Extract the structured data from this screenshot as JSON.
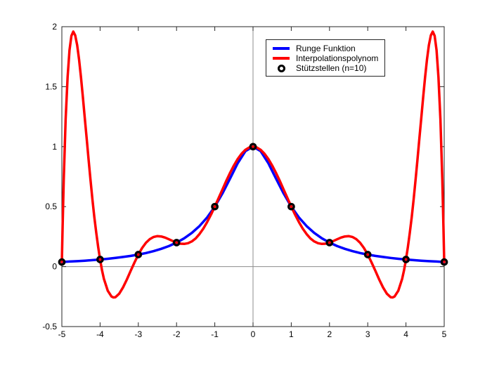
{
  "figure": {
    "background_color": "#ffffff",
    "axis_color": "#262626",
    "zero_line_color": "#8c8c8c",
    "text_color": "#000000"
  },
  "legend": {
    "items": [
      {
        "label": "Runge Funktion",
        "swatch": "line",
        "color": "#0000ff"
      },
      {
        "label": "Interpolationspolynom",
        "swatch": "line",
        "color": "#ff0000"
      },
      {
        "label": "Stützstellen (n=10)",
        "swatch": "marker",
        "color": "#000000"
      }
    ]
  },
  "chart_data": {
    "type": "line",
    "title": "",
    "xlabel": "",
    "ylabel": "",
    "xlim": [
      -5,
      5
    ],
    "ylim": [
      -0.5,
      2
    ],
    "x_ticks": [
      -5,
      -4,
      -3,
      -2,
      -1,
      0,
      1,
      2,
      3,
      4,
      5
    ],
    "x_tick_labels": [
      "-5",
      "-4",
      "-3",
      "-2",
      "-1",
      "0",
      "1",
      "2",
      "3",
      "4",
      "5"
    ],
    "y_ticks": [
      -0.5,
      0,
      0.5,
      1,
      1.5,
      2
    ],
    "y_tick_labels": [
      "-0.5",
      "0",
      "0.5",
      "1",
      "1.5",
      "2"
    ],
    "grid": false,
    "zero_lines": true,
    "box": true,
    "legend_position": "top-right-inside",
    "series": [
      {
        "name": "Runge Funktion",
        "type": "line",
        "color": "#0000ff",
        "line_width": 3.5,
        "points": [
          [
            -5,
            0.038
          ],
          [
            -4.8,
            0.042
          ],
          [
            -4.6,
            0.045
          ],
          [
            -4.4,
            0.049
          ],
          [
            -4.2,
            0.054
          ],
          [
            -4,
            0.059
          ],
          [
            -3.8,
            0.065
          ],
          [
            -3.6,
            0.072
          ],
          [
            -3.4,
            0.08
          ],
          [
            -3.2,
            0.089
          ],
          [
            -3,
            0.1
          ],
          [
            -2.8,
            0.113
          ],
          [
            -2.6,
            0.129
          ],
          [
            -2.4,
            0.148
          ],
          [
            -2.2,
            0.171
          ],
          [
            -2,
            0.2
          ],
          [
            -1.8,
            0.236
          ],
          [
            -1.6,
            0.281
          ],
          [
            -1.4,
            0.338
          ],
          [
            -1.2,
            0.41
          ],
          [
            -1,
            0.5
          ],
          [
            -0.8,
            0.61
          ],
          [
            -0.6,
            0.735
          ],
          [
            -0.4,
            0.862
          ],
          [
            -0.2,
            0.962
          ],
          [
            0,
            1
          ],
          [
            0.2,
            0.962
          ],
          [
            0.4,
            0.862
          ],
          [
            0.6,
            0.735
          ],
          [
            0.8,
            0.61
          ],
          [
            1,
            0.5
          ],
          [
            1.2,
            0.41
          ],
          [
            1.4,
            0.338
          ],
          [
            1.6,
            0.281
          ],
          [
            1.8,
            0.236
          ],
          [
            2,
            0.2
          ],
          [
            2.2,
            0.171
          ],
          [
            2.4,
            0.148
          ],
          [
            2.6,
            0.129
          ],
          [
            2.8,
            0.113
          ],
          [
            3,
            0.1
          ],
          [
            3.2,
            0.089
          ],
          [
            3.4,
            0.08
          ],
          [
            3.6,
            0.072
          ],
          [
            3.8,
            0.065
          ],
          [
            4,
            0.059
          ],
          [
            4.2,
            0.054
          ],
          [
            4.4,
            0.049
          ],
          [
            4.6,
            0.045
          ],
          [
            4.8,
            0.042
          ],
          [
            5,
            0.038
          ]
        ]
      },
      {
        "name": "Interpolationspolynom",
        "type": "line",
        "color": "#ff0000",
        "line_width": 3.5,
        "points": [
          [
            -5,
            0.038
          ],
          [
            -4.98,
            0.338
          ],
          [
            -4.95,
            0.726
          ],
          [
            -4.9,
            1.23
          ],
          [
            -4.85,
            1.581
          ],
          [
            -4.8,
            1.805
          ],
          [
            -4.75,
            1.924
          ],
          [
            -4.7,
            1.959
          ],
          [
            -4.65,
            1.928
          ],
          [
            -4.6,
            1.846
          ],
          [
            -4.55,
            1.726
          ],
          [
            -4.5,
            1.579
          ],
          [
            -4.45,
            1.414
          ],
          [
            -4.4,
            1.24
          ],
          [
            -4.35,
            1.063
          ],
          [
            -4.3,
            0.888
          ],
          [
            -4.25,
            0.72
          ],
          [
            -4.2,
            0.56
          ],
          [
            -4.15,
            0.413
          ],
          [
            -4.1,
            0.28
          ],
          [
            -4.05,
            0.162
          ],
          [
            -4,
            0.059
          ],
          [
            -3.95,
            -0.029
          ],
          [
            -3.9,
            -0.101
          ],
          [
            -3.8,
            -0.201
          ],
          [
            -3.7,
            -0.25
          ],
          [
            -3.65,
            -0.257
          ],
          [
            -3.6,
            -0.255
          ],
          [
            -3.5,
            -0.226
          ],
          [
            -3.4,
            -0.174
          ],
          [
            -3.3,
            -0.108
          ],
          [
            -3.2,
            -0.036
          ],
          [
            -3.1,
            0.035
          ],
          [
            -3,
            0.1
          ],
          [
            -2.9,
            0.155
          ],
          [
            -2.8,
            0.199
          ],
          [
            -2.7,
            0.229
          ],
          [
            -2.6,
            0.247
          ],
          [
            -2.5,
            0.254
          ],
          [
            -2.4,
            0.251
          ],
          [
            -2.3,
            0.242
          ],
          [
            -2.2,
            0.228
          ],
          [
            -2.1,
            0.213
          ],
          [
            -2,
            0.2
          ],
          [
            -1.9,
            0.191
          ],
          [
            -1.8,
            0.189
          ],
          [
            -1.7,
            0.195
          ],
          [
            -1.6,
            0.21
          ],
          [
            -1.5,
            0.235
          ],
          [
            -1.4,
            0.271
          ],
          [
            -1.3,
            0.317
          ],
          [
            -1.2,
            0.371
          ],
          [
            -1.1,
            0.433
          ],
          [
            -1,
            0.5
          ],
          [
            -0.9,
            0.571
          ],
          [
            -0.8,
            0.643
          ],
          [
            -0.7,
            0.714
          ],
          [
            -0.6,
            0.782
          ],
          [
            -0.5,
            0.843
          ],
          [
            -0.4,
            0.897
          ],
          [
            -0.3,
            0.941
          ],
          [
            -0.2,
            0.973
          ],
          [
            -0.1,
            0.993
          ],
          [
            0,
            1
          ],
          [
            0.1,
            0.993
          ],
          [
            0.2,
            0.973
          ],
          [
            0.3,
            0.941
          ],
          [
            0.4,
            0.897
          ],
          [
            0.5,
            0.843
          ],
          [
            0.6,
            0.782
          ],
          [
            0.7,
            0.714
          ],
          [
            0.8,
            0.643
          ],
          [
            0.9,
            0.571
          ],
          [
            1,
            0.5
          ],
          [
            1.1,
            0.433
          ],
          [
            1.2,
            0.371
          ],
          [
            1.3,
            0.317
          ],
          [
            1.4,
            0.271
          ],
          [
            1.5,
            0.235
          ],
          [
            1.6,
            0.21
          ],
          [
            1.7,
            0.195
          ],
          [
            1.8,
            0.189
          ],
          [
            1.9,
            0.191
          ],
          [
            2,
            0.2
          ],
          [
            2.1,
            0.213
          ],
          [
            2.2,
            0.228
          ],
          [
            2.3,
            0.242
          ],
          [
            2.4,
            0.251
          ],
          [
            2.5,
            0.254
          ],
          [
            2.6,
            0.247
          ],
          [
            2.7,
            0.229
          ],
          [
            2.8,
            0.199
          ],
          [
            2.9,
            0.155
          ],
          [
            3,
            0.1
          ],
          [
            3.1,
            0.035
          ],
          [
            3.2,
            -0.036
          ],
          [
            3.3,
            -0.108
          ],
          [
            3.4,
            -0.174
          ],
          [
            3.5,
            -0.226
          ],
          [
            3.6,
            -0.255
          ],
          [
            3.65,
            -0.257
          ],
          [
            3.7,
            -0.25
          ],
          [
            3.8,
            -0.201
          ],
          [
            3.9,
            -0.101
          ],
          [
            3.95,
            -0.029
          ],
          [
            4,
            0.059
          ],
          [
            4.05,
            0.162
          ],
          [
            4.1,
            0.28
          ],
          [
            4.15,
            0.413
          ],
          [
            4.2,
            0.56
          ],
          [
            4.25,
            0.72
          ],
          [
            4.3,
            0.888
          ],
          [
            4.35,
            1.063
          ],
          [
            4.4,
            1.24
          ],
          [
            4.45,
            1.414
          ],
          [
            4.5,
            1.579
          ],
          [
            4.55,
            1.726
          ],
          [
            4.6,
            1.846
          ],
          [
            4.65,
            1.928
          ],
          [
            4.7,
            1.959
          ],
          [
            4.75,
            1.924
          ],
          [
            4.8,
            1.805
          ],
          [
            4.85,
            1.581
          ],
          [
            4.9,
            1.23
          ],
          [
            4.95,
            0.726
          ],
          [
            4.98,
            0.338
          ],
          [
            5,
            0.038
          ]
        ]
      },
      {
        "name": "Stützstellen (n=10)",
        "type": "scatter",
        "marker": "open-circle",
        "color": "#000000",
        "marker_radius": 3.7,
        "marker_stroke": 3.3,
        "points": [
          [
            -5,
            0.038
          ],
          [
            -4,
            0.059
          ],
          [
            -3,
            0.1
          ],
          [
            -2,
            0.2
          ],
          [
            -1,
            0.5
          ],
          [
            0,
            1
          ],
          [
            1,
            0.5
          ],
          [
            2,
            0.2
          ],
          [
            3,
            0.1
          ],
          [
            4,
            0.059
          ],
          [
            5,
            0.038
          ]
        ]
      }
    ]
  }
}
